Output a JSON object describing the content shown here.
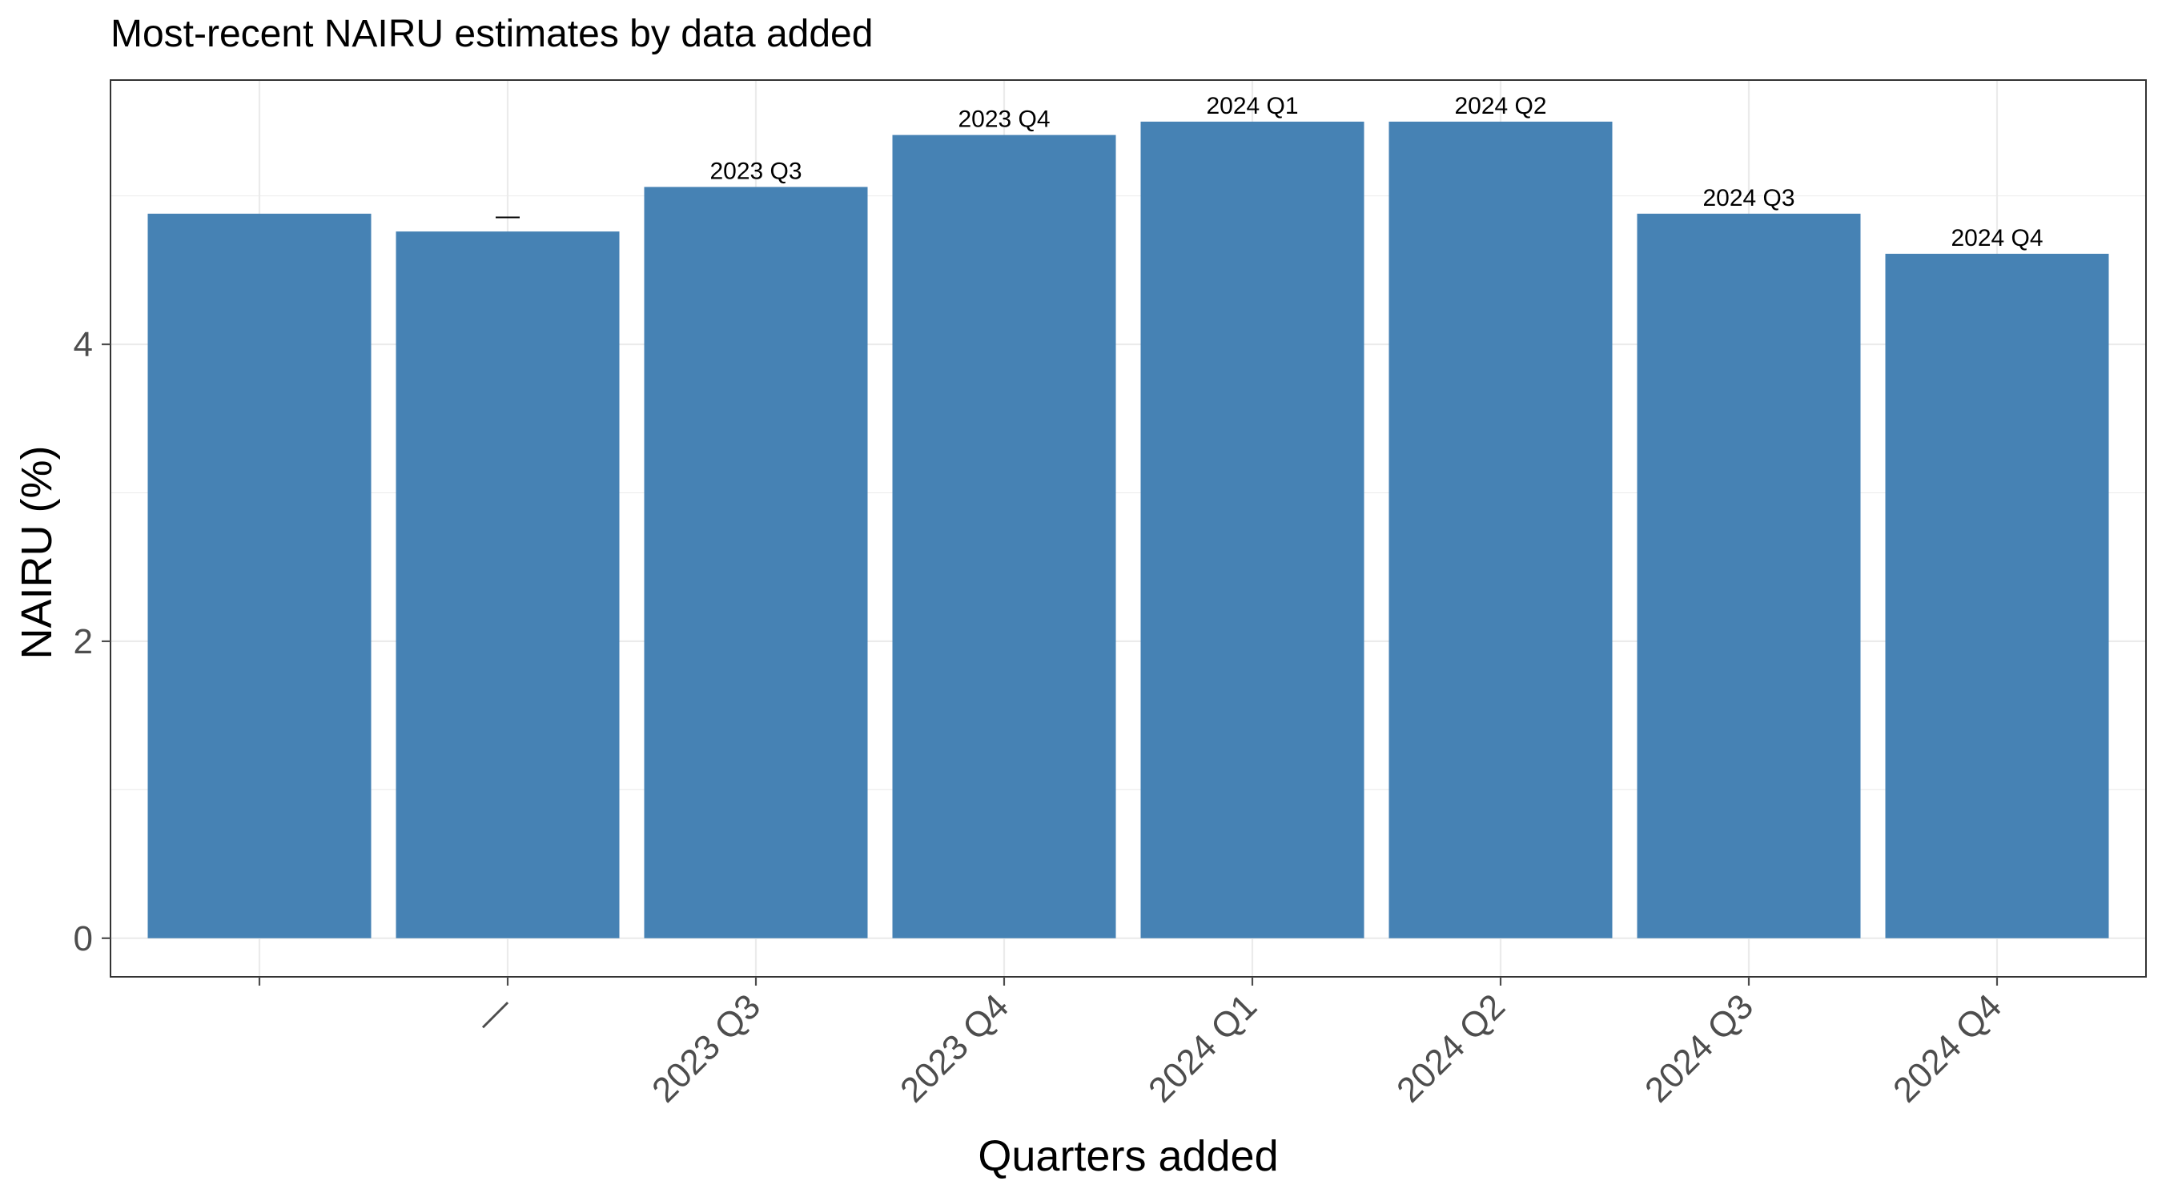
{
  "chart_data": {
    "type": "bar",
    "title": "Most-recent NAIRU estimates by data added",
    "xlabel": "Quarters added",
    "ylabel": "NAIRU (%)",
    "categories": [
      "",
      "—",
      "2023 Q3",
      "2023 Q4",
      "2024 Q1",
      "2024 Q2",
      "2024 Q3",
      "2024 Q4"
    ],
    "values": [
      4.88,
      4.76,
      5.06,
      5.41,
      5.5,
      5.5,
      4.88,
      4.61
    ],
    "data_labels": [
      "",
      "—",
      "2023 Q3",
      "2023 Q4",
      "2024 Q1",
      "2024 Q2",
      "2024 Q3",
      "2024 Q4"
    ],
    "yticks": [
      0,
      2,
      4
    ],
    "ylim": [
      -0.26,
      5.78
    ],
    "grid": true,
    "legend": "none",
    "colors": {
      "bar": "#4682b4",
      "grid": "#ebebeb",
      "panel_border": "#333333",
      "tick": "#4d4d4d"
    }
  }
}
